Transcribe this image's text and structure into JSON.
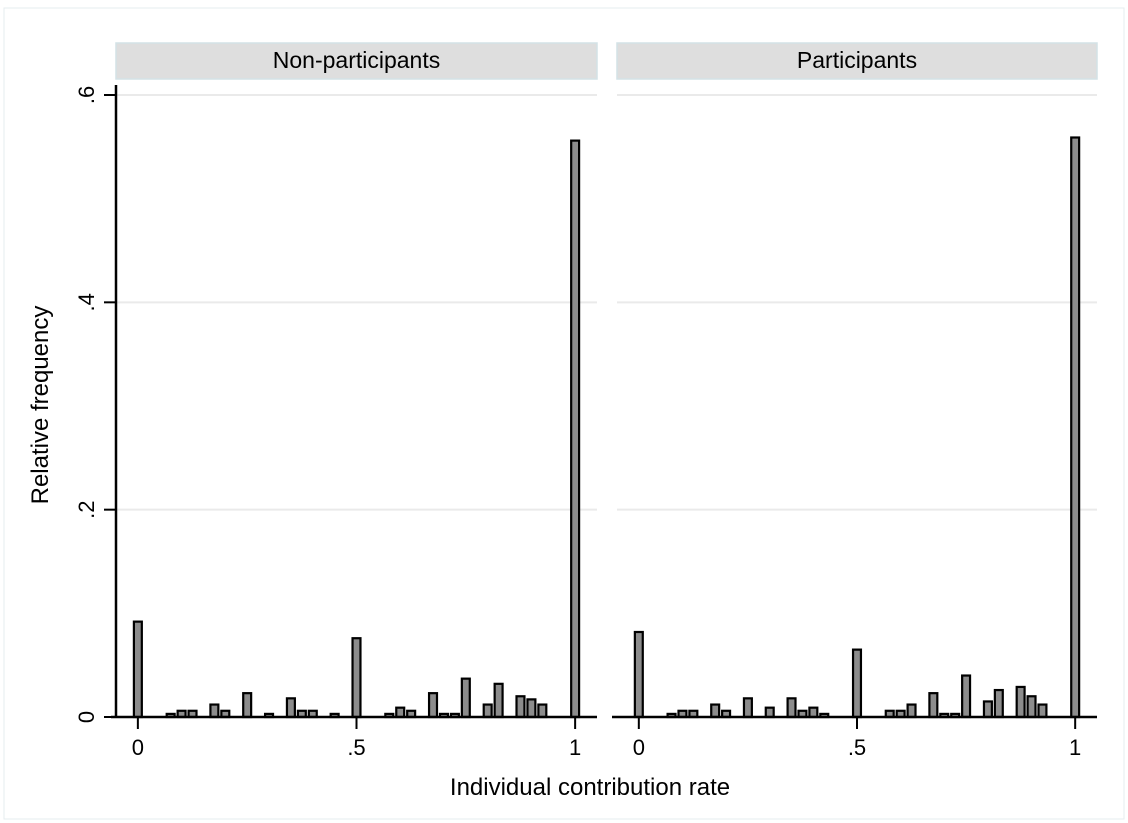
{
  "chart_data": {
    "type": "bar",
    "xlabel": "Individual contribution rate",
    "ylabel": "Relative frequency",
    "xlim": [
      -0.05,
      1.05
    ],
    "ylim": [
      0,
      0.6
    ],
    "x_ticks": [
      0,
      0.5,
      1
    ],
    "x_tick_labels": [
      "0",
      ".5",
      "1"
    ],
    "y_ticks": [
      0,
      0.2,
      0.4,
      0.6
    ],
    "y_tick_labels": [
      "0",
      ".2",
      ".4",
      ".6"
    ],
    "grid": true,
    "bar_color": "#8c8c8c",
    "bin_width": 0.025,
    "panels": [
      {
        "title": "Non-participants",
        "x": [
          0,
          0.075,
          0.1,
          0.125,
          0.175,
          0.2,
          0.25,
          0.3,
          0.35,
          0.375,
          0.4,
          0.45,
          0.5,
          0.575,
          0.6,
          0.625,
          0.675,
          0.7,
          0.725,
          0.75,
          0.8,
          0.825,
          0.875,
          0.9,
          0.925,
          1
        ],
        "values": [
          0.092,
          0.003,
          0.006,
          0.006,
          0.012,
          0.006,
          0.023,
          0.003,
          0.018,
          0.006,
          0.006,
          0.003,
          0.076,
          0.003,
          0.009,
          0.006,
          0.023,
          0.003,
          0.003,
          0.037,
          0.012,
          0.032,
          0.02,
          0.017,
          0.012,
          0.556
        ]
      },
      {
        "title": "Participants",
        "x": [
          0,
          0.075,
          0.1,
          0.125,
          0.175,
          0.2,
          0.25,
          0.3,
          0.35,
          0.375,
          0.4,
          0.425,
          0.5,
          0.575,
          0.6,
          0.625,
          0.675,
          0.7,
          0.725,
          0.75,
          0.8,
          0.825,
          0.875,
          0.9,
          0.925,
          1
        ],
        "values": [
          0.082,
          0.003,
          0.006,
          0.006,
          0.012,
          0.006,
          0.018,
          0.009,
          0.018,
          0.006,
          0.009,
          0.003,
          0.065,
          0.006,
          0.006,
          0.012,
          0.023,
          0.003,
          0.003,
          0.04,
          0.015,
          0.026,
          0.029,
          0.02,
          0.012,
          0.559
        ]
      }
    ]
  }
}
